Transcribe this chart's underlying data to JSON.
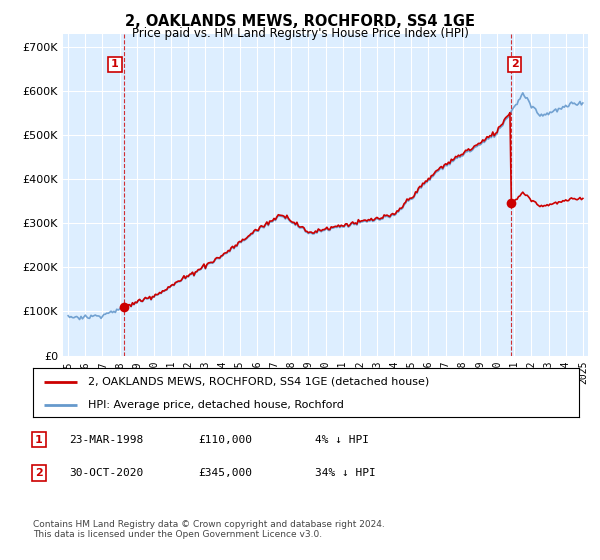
{
  "title": "2, OAKLANDS MEWS, ROCHFORD, SS4 1GE",
  "subtitle": "Price paid vs. HM Land Registry's House Price Index (HPI)",
  "legend_line1": "2, OAKLANDS MEWS, ROCHFORD, SS4 1GE (detached house)",
  "legend_line2": "HPI: Average price, detached house, Rochford",
  "table_rows": [
    {
      "num": "1",
      "date": "23-MAR-1998",
      "price": "£110,000",
      "change": "4% ↓ HPI"
    },
    {
      "num": "2",
      "date": "30-OCT-2020",
      "price": "£345,000",
      "change": "34% ↓ HPI"
    }
  ],
  "footnote": "Contains HM Land Registry data © Crown copyright and database right 2024.\nThis data is licensed under the Open Government Licence v3.0.",
  "ylim": [
    0,
    730000
  ],
  "yticks": [
    0,
    100000,
    200000,
    300000,
    400000,
    500000,
    600000,
    700000
  ],
  "purchase1_year": 1998.23,
  "purchase1_price": 110000,
  "purchase2_year": 2020.83,
  "purchase2_price": 345000,
  "hpi_color": "#6699cc",
  "price_color": "#cc0000",
  "plot_bg_color": "#ddeeff",
  "grid_color": "#ffffff",
  "vline_color": "#cc0000"
}
